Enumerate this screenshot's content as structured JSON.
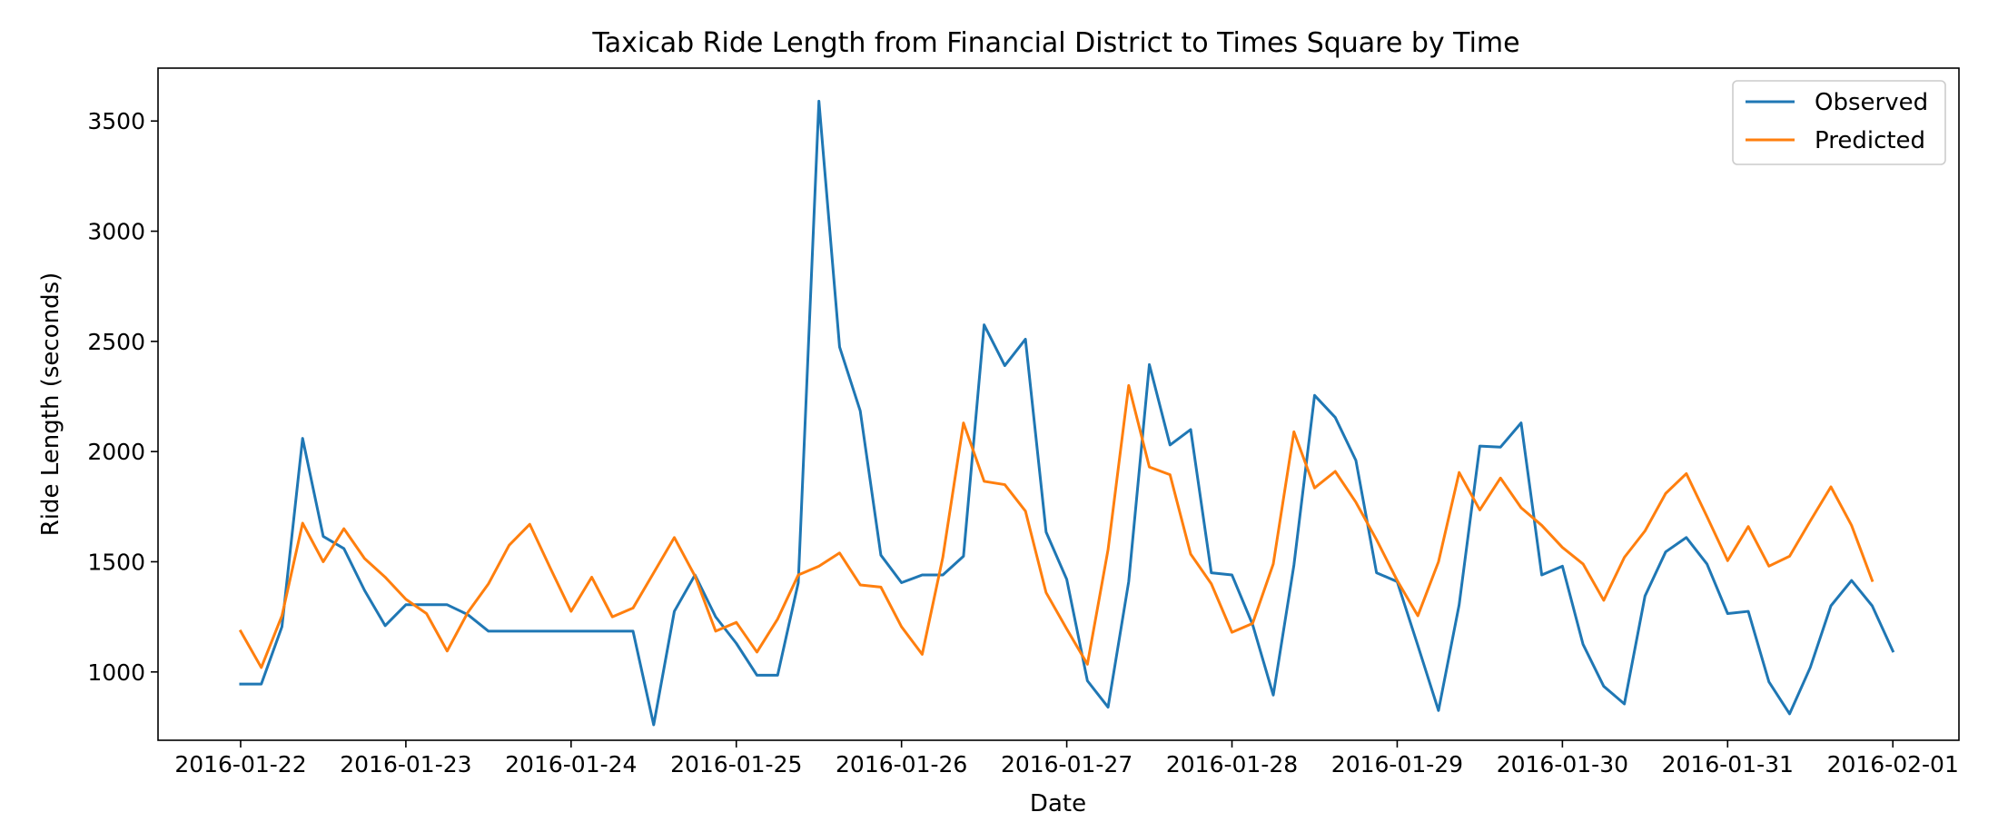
{
  "chart_data": {
    "type": "line",
    "title": "Taxicab Ride Length from Financial District to Times Square by Time",
    "xlabel": "Date",
    "ylabel": "Ride Length (seconds)",
    "x_start": "2016-01-22",
    "x_step_hours": 3,
    "xlim": [
      "2016-01-21T12:00",
      "2016-02-01T09:36"
    ],
    "ylim": [
      690,
      3740
    ],
    "x_ticks": [
      "2016-01-22",
      "2016-01-23",
      "2016-01-24",
      "2016-01-25",
      "2016-01-26",
      "2016-01-27",
      "2016-01-28",
      "2016-01-29",
      "2016-01-30",
      "2016-01-31",
      "2016-02-01"
    ],
    "y_ticks": [
      1000,
      1500,
      2000,
      2500,
      3000,
      3500
    ],
    "grid": false,
    "legend": "top-right",
    "series": [
      {
        "name": "Observed",
        "color": "#1f77b4",
        "values": [
          945,
          945,
          1205,
          2060,
          1615,
          1560,
          1370,
          1210,
          1305,
          1305,
          1305,
          1260,
          1185,
          1185,
          1185,
          1185,
          1185,
          1185,
          1185,
          1185,
          760,
          1275,
          1440,
          1250,
          1130,
          985,
          985,
          1405,
          3590,
          2475,
          2185,
          1530,
          1405,
          1440,
          1440,
          1525,
          2575,
          2390,
          2510,
          1635,
          1420,
          960,
          840,
          1410,
          2395,
          2030,
          2100,
          1450,
          1440,
          1215,
          895,
          1485,
          2255,
          2155,
          1960,
          1450,
          1410,
          1120,
          825,
          1305,
          2025,
          2020,
          2130,
          1440,
          1480,
          1125,
          935,
          855,
          1345,
          1545,
          1610,
          1490,
          1265,
          1275,
          955,
          810,
          1020,
          1300,
          1415,
          1300,
          1095
        ]
      },
      {
        "name": "Predicted",
        "color": "#ff7f0e",
        "values": [
          1185,
          1020,
          1255,
          1675,
          1500,
          1650,
          1515,
          1430,
          1330,
          1265,
          1095,
          1270,
          1400,
          1575,
          1670,
          1470,
          1275,
          1430,
          1250,
          1290,
          1450,
          1610,
          1435,
          1185,
          1225,
          1090,
          1240,
          1440,
          1480,
          1540,
          1395,
          1385,
          1205,
          1080,
          1520,
          2130,
          1865,
          1850,
          1730,
          1360,
          1195,
          1035,
          1555,
          2300,
          1930,
          1895,
          1535,
          1400,
          1180,
          1220,
          1490,
          2090,
          1835,
          1910,
          1770,
          1600,
          1415,
          1255,
          1500,
          1905,
          1735,
          1880,
          1745,
          1665,
          1565,
          1490,
          1325,
          1520,
          1640,
          1810,
          1900,
          1705,
          1505,
          1660,
          1480,
          1525,
          1685,
          1840,
          1665,
          1415
        ]
      }
    ]
  }
}
